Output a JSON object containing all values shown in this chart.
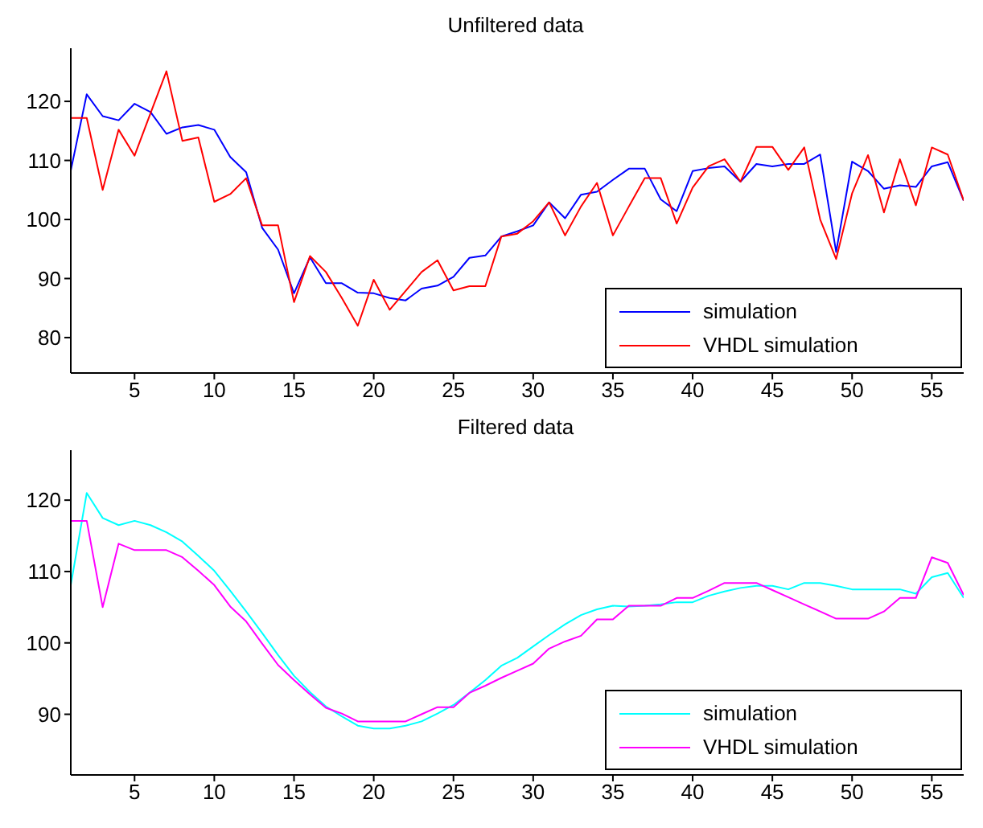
{
  "chart_data": [
    {
      "type": "line",
      "title": "Unfiltered data",
      "x": [
        1,
        2,
        3,
        4,
        5,
        6,
        7,
        8,
        9,
        10,
        11,
        12,
        13,
        14,
        15,
        16,
        17,
        18,
        19,
        20,
        21,
        22,
        23,
        24,
        25,
        26,
        27,
        28,
        29,
        30,
        31,
        32,
        33,
        34,
        35,
        36,
        37,
        38,
        39,
        40,
        41,
        42,
        43,
        44,
        45,
        46,
        47,
        48,
        49,
        50,
        51,
        52,
        53,
        54,
        55,
        56,
        57
      ],
      "xlim": [
        1,
        57
      ],
      "xticks": [
        5,
        10,
        15,
        20,
        25,
        30,
        35,
        40,
        45,
        50,
        55
      ],
      "ylim": [
        74,
        129
      ],
      "yticks": [
        80,
        90,
        100,
        110,
        120
      ],
      "grid": false,
      "legend": "bottom right",
      "marker": "none",
      "line_style": "solid",
      "series": [
        {
          "name": "simulation",
          "color": "#0000ff",
          "values": [
            108.3,
            121.2,
            117.5,
            116.8,
            119.6,
            118.2,
            114.5,
            115.6,
            116,
            115.2,
            110.6,
            108,
            98.6,
            94.9,
            87.5,
            93.6,
            89.2,
            89.2,
            87.6,
            87.5,
            86.7,
            86.3,
            88.3,
            88.8,
            90.3,
            93.5,
            93.9,
            97.1,
            98,
            99,
            102.9,
            100.2,
            104.2,
            104.7,
            106.7,
            108.6,
            108.6,
            103.4,
            101.4,
            108.2,
            108.7,
            109,
            106.4,
            109.4,
            109,
            109.4,
            109.4,
            111,
            94.5,
            109.8,
            108.2,
            105.2,
            105.8,
            105.5,
            109,
            109.7,
            103.2
          ]
        },
        {
          "name": "VHDL simulation",
          "color": "#ff0000",
          "values": [
            117.2,
            117.2,
            105,
            115.2,
            110.8,
            118,
            125.1,
            113.3,
            113.9,
            103,
            104.3,
            107,
            99,
            99,
            86,
            93.8,
            91.1,
            86.7,
            82,
            89.8,
            84.7,
            87.9,
            91.1,
            93.1,
            88,
            88.7,
            88.7,
            97.1,
            97.6,
            99.7,
            102.9,
            97.3,
            102.2,
            106.2,
            97.3,
            102.2,
            107,
            107,
            99.3,
            105.4,
            109,
            110.2,
            106.4,
            112.3,
            112.3,
            108.4,
            112.2,
            100,
            93.3,
            104.4,
            110.9,
            101.2,
            110.2,
            102.4,
            112.2,
            111,
            103.2
          ]
        }
      ]
    },
    {
      "type": "line",
      "title": "Filtered data",
      "x": [
        1,
        2,
        3,
        4,
        5,
        6,
        7,
        8,
        9,
        10,
        11,
        12,
        13,
        14,
        15,
        16,
        17,
        18,
        19,
        20,
        21,
        22,
        23,
        24,
        25,
        26,
        27,
        28,
        29,
        30,
        31,
        32,
        33,
        34,
        35,
        36,
        37,
        38,
        39,
        40,
        41,
        42,
        43,
        44,
        45,
        46,
        47,
        48,
        49,
        50,
        51,
        52,
        53,
        54,
        55,
        56,
        57
      ],
      "xlim": [
        1,
        57
      ],
      "xticks": [
        5,
        10,
        15,
        20,
        25,
        30,
        35,
        40,
        45,
        50,
        55
      ],
      "ylim": [
        81.5,
        127
      ],
      "yticks": [
        90,
        100,
        110,
        120
      ],
      "grid": false,
      "legend": "bottom right",
      "marker": "none",
      "line_style": "solid",
      "series": [
        {
          "name": "simulation",
          "color": "#00ffff",
          "values": [
            108.1,
            121,
            117.5,
            116.5,
            117.1,
            116.5,
            115.5,
            114.2,
            112.2,
            110.1,
            107.3,
            104.4,
            101.4,
            98.3,
            95.4,
            93.1,
            91.1,
            89.7,
            88.4,
            88,
            88,
            88.4,
            89,
            90.1,
            91.3,
            93,
            94.8,
            96.8,
            97.9,
            99.5,
            101.1,
            102.6,
            103.9,
            104.7,
            105.2,
            105.1,
            105.2,
            105.4,
            105.7,
            105.7,
            106.6,
            107.2,
            107.7,
            108,
            108,
            107.5,
            108.4,
            108.4,
            108,
            107.5,
            107.5,
            107.5,
            107.5,
            106.9,
            109.2,
            109.8,
            106.3
          ]
        },
        {
          "name": "VHDL simulation",
          "color": "#ff00ff",
          "values": [
            117.1,
            117.1,
            105,
            113.9,
            113,
            113,
            113,
            112,
            110.1,
            108.1,
            105.1,
            103,
            99.9,
            96.9,
            94.8,
            92.8,
            90.9,
            90.1,
            89,
            89,
            89,
            89,
            90,
            91,
            91,
            93,
            94,
            95.1,
            96.1,
            97.1,
            99.2,
            100.2,
            101,
            103.3,
            103.3,
            105.2,
            105.2,
            105.2,
            106.3,
            106.3,
            107.3,
            108.4,
            108.4,
            108.4,
            107.4,
            106.4,
            105.4,
            104.4,
            103.4,
            103.4,
            103.4,
            104.4,
            106.3,
            106.3,
            112,
            111.2,
            106.7
          ]
        }
      ]
    }
  ]
}
